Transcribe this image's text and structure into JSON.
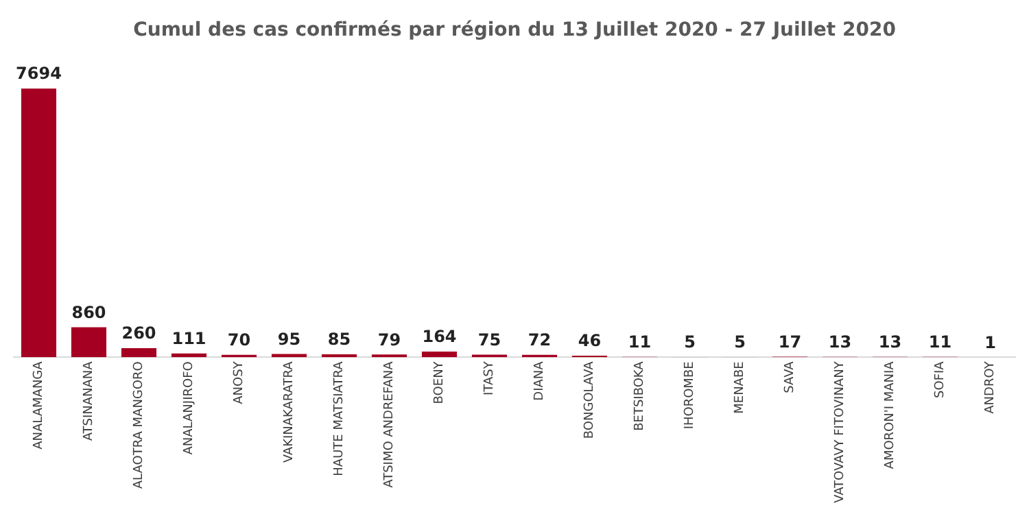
{
  "chart_data": {
    "type": "bar",
    "title": "Cumul des cas confirmés par région du 13 Juillet 2020 - 27 Juillet 2020",
    "categories": [
      "ANALAMANGA",
      "ATSINANANA",
      "ALAOTRA MANGORO",
      "ANALANJIROFO",
      "ANOSY",
      "VAKINAKARATRA",
      "HAUTE MATSIATRA",
      "ATSIMO ANDREFANA",
      "BOENY",
      "ITASY",
      "DIANA",
      "BONGOLAVA",
      "BETSIBOKA",
      "IHOROMBE",
      "MENABE",
      "SAVA",
      "VATOVAVY FITOVINANY",
      "AMORON'I MANIA",
      "SOFIA",
      "ANDROY"
    ],
    "values": [
      7694,
      860,
      260,
      111,
      70,
      95,
      85,
      79,
      164,
      75,
      72,
      46,
      11,
      5,
      5,
      17,
      13,
      13,
      11,
      1
    ],
    "color": "#a50021",
    "data_labels": true,
    "grid": false,
    "legend": false
  }
}
